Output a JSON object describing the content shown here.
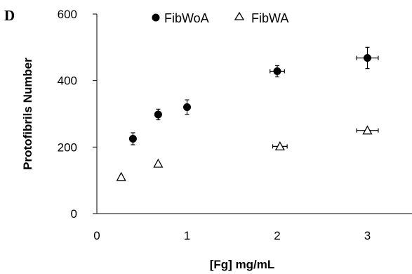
{
  "panel_label": "D",
  "chart_data": {
    "type": "scatter",
    "title": "",
    "xlabel": "[Fg] mg/mL",
    "ylabel": "Protofibrils Number",
    "xlim": [
      0,
      3.5
    ],
    "ylim": [
      0,
      600
    ],
    "xticks": [
      0,
      1,
      2,
      3
    ],
    "yticks": [
      0,
      200,
      400,
      600
    ],
    "grid": false,
    "legend_position": "top",
    "series": [
      {
        "name": "FibWoA",
        "marker": "filled-circle",
        "points": [
          {
            "x": 0.4,
            "y": 225,
            "yerr": 18,
            "xerr": 0
          },
          {
            "x": 0.68,
            "y": 298,
            "yerr": 16,
            "xerr": 0
          },
          {
            "x": 1.0,
            "y": 320,
            "yerr": 22,
            "xerr": 0
          },
          {
            "x": 2.0,
            "y": 428,
            "yerr": 17,
            "xerr": 0.08
          },
          {
            "x": 3.0,
            "y": 468,
            "yerr": 32,
            "xerr": 0.12
          }
        ]
      },
      {
        "name": "FibWA",
        "marker": "open-triangle",
        "points": [
          {
            "x": 0.27,
            "y": 110,
            "yerr": 0,
            "xerr": 0
          },
          {
            "x": 0.68,
            "y": 150,
            "yerr": 0,
            "xerr": 0
          },
          {
            "x": 2.03,
            "y": 202,
            "yerr": 0,
            "xerr": 0.08
          },
          {
            "x": 3.0,
            "y": 250,
            "yerr": 0,
            "xerr": 0.12
          }
        ]
      }
    ]
  }
}
